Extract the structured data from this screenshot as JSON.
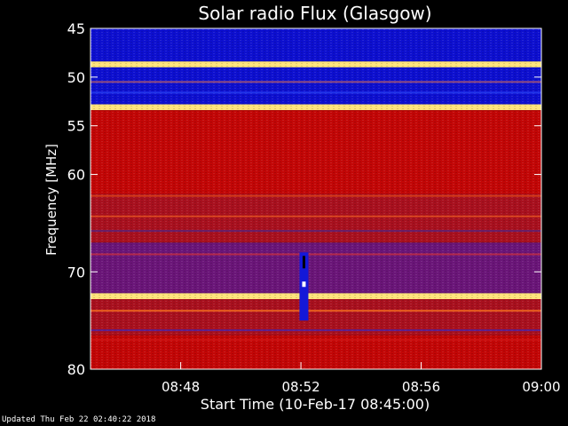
{
  "chart_data": {
    "type": "heatmap",
    "title": "Solar radio Flux (Glasgow)",
    "xlabel": "Start Time (10-Feb-17 08:45:00)",
    "ylabel": "Frequency [MHz]",
    "x_ticks": [
      "08:48",
      "08:52",
      "08:56",
      "09:00"
    ],
    "x_tick_minutes": [
      3,
      7,
      11,
      15
    ],
    "xlim_minutes": [
      0,
      15
    ],
    "y_ticks": [
      45,
      50,
      55,
      60,
      70,
      80
    ],
    "ylim": [
      45,
      80
    ],
    "y_axis_direction": "frequency increases downward",
    "grid": false,
    "colors": {
      "background": "#000000",
      "low": "#0a0ad0",
      "mid": "#cc0000",
      "high": "#ffe070",
      "axis": "#ffffff"
    },
    "bands": [
      {
        "from": 45.0,
        "to": 48.4,
        "level": "low"
      },
      {
        "from": 48.4,
        "to": 49.0,
        "level": "high"
      },
      {
        "from": 49.0,
        "to": 52.8,
        "level": "low"
      },
      {
        "from": 52.8,
        "to": 53.4,
        "level": "high"
      },
      {
        "from": 53.4,
        "to": 62.0,
        "level": "mid"
      },
      {
        "from": 62.0,
        "to": 67.0,
        "level": "mid-low"
      },
      {
        "from": 67.0,
        "to": 72.2,
        "level": "low-mid"
      },
      {
        "from": 72.2,
        "to": 72.8,
        "level": "high"
      },
      {
        "from": 72.8,
        "to": 76.5,
        "level": "mid-low"
      },
      {
        "from": 76.5,
        "to": 80.0,
        "level": "mid"
      }
    ],
    "burst": {
      "time_minutes": 7.1,
      "from": 68.0,
      "to": 75.0
    }
  },
  "footer": {
    "updated": "Updated Thu Feb 22 02:40:22 2018"
  }
}
